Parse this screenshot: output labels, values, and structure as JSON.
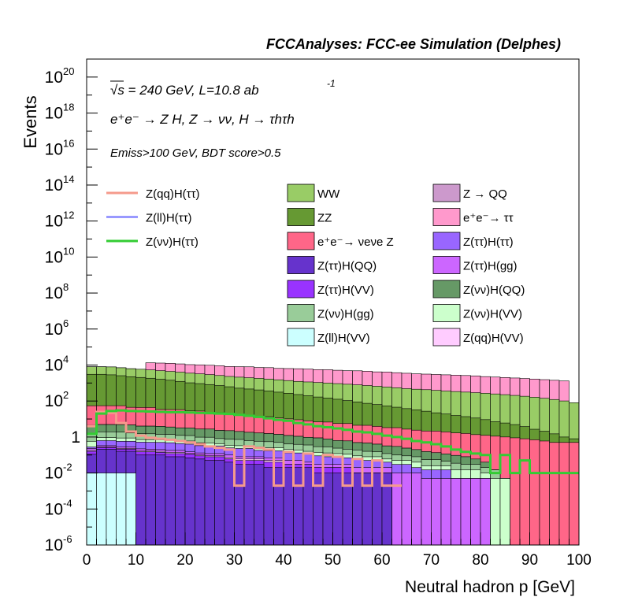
{
  "chart_data": {
    "type": "histogram-stacked-log",
    "title": "FCCAnalyses: FCC-ee Simulation (Delphes)",
    "annotations": {
      "energy_line": "√s = 240 GeV, L=10.8 ab",
      "energy_sup": "-1",
      "process_line": "e⁺e⁻ → Z H, Z → νν, H → τhτh",
      "cut_line": "Emiss>100 GeV, BDT score>0.5"
    },
    "xlabel": "Neutral hadron p [GeV]",
    "ylabel": "Events",
    "xlim": [
      0,
      100
    ],
    "ylim": [
      1e-06,
      1e+21
    ],
    "yscale": "log",
    "x_ticks": [
      "0",
      "10",
      "20",
      "30",
      "40",
      "50",
      "60",
      "70",
      "80",
      "90",
      "100"
    ],
    "y_ticks": [
      {
        "base": "10",
        "exp": "20",
        "value": 1e+20
      },
      {
        "base": "10",
        "exp": "18",
        "value": 1e+18
      },
      {
        "base": "10",
        "exp": "16",
        "value": 1e+16
      },
      {
        "base": "10",
        "exp": "14",
        "value": 100000000000000.0
      },
      {
        "base": "10",
        "exp": "12",
        "value": 1000000000000.0
      },
      {
        "base": "10",
        "exp": "10",
        "value": 10000000000.0
      },
      {
        "base": "10",
        "exp": "8",
        "value": 100000000.0
      },
      {
        "base": "10",
        "exp": "6",
        "value": 1000000.0
      },
      {
        "base": "10",
        "exp": "4",
        "value": 10000.0
      },
      {
        "base": "10",
        "exp": "2",
        "value": 100.0
      },
      {
        "base": "1",
        "exp": "",
        "value": 1
      },
      {
        "base": "10",
        "exp": "-2",
        "value": 0.01
      },
      {
        "base": "10",
        "exp": "-4",
        "value": 0.0001
      },
      {
        "base": "10",
        "exp": "-6",
        "value": 1e-06
      }
    ],
    "bin_width": 2,
    "legend_placement": "upper area, three columns",
    "signal_lines": [
      {
        "name": "Z(qq)H(ττ)",
        "color": "#f59a8c",
        "values": [
          4,
          25,
          22,
          6,
          2,
          1.2,
          0.9,
          0.8,
          0.7,
          0.6,
          0.5,
          0.4,
          0.3,
          0.25,
          0.2,
          0.002,
          0.3,
          0.25,
          0.2,
          0.002,
          0.15,
          0.002,
          0.12,
          0.002,
          0.1,
          0.08,
          0.002,
          0.06,
          0.002,
          0.05,
          0.002,
          0.002
        ]
      },
      {
        "name": "Z(ll)H(ττ)",
        "color": "#9999ff",
        "values": []
      },
      {
        "name": "Z(νν)H(ττ)",
        "color": "#33cc33",
        "values": [
          1.5,
          20,
          28,
          30,
          28,
          27,
          26,
          25,
          24,
          24,
          23,
          22,
          21,
          20,
          19,
          17,
          15,
          13,
          11,
          9,
          8,
          6,
          5,
          4,
          3.5,
          3,
          2.5,
          2,
          1.8,
          1.5,
          1.2,
          1,
          0.8,
          0.6,
          0.5,
          0.4,
          0.3,
          0.2,
          0.15,
          0.12,
          0.1,
          0.01,
          0.1,
          0.01,
          0.05,
          0.01,
          0.01,
          0.01,
          0.01,
          0.01
        ]
      }
    ],
    "stacked_series": [
      {
        "name": "Z(ll)H(VV)",
        "color": "#ccffff",
        "values": [
          0.01,
          0.01,
          0.01,
          0.01,
          0.01,
          0,
          0,
          0,
          0,
          0,
          0,
          0,
          0,
          0,
          0,
          0,
          0,
          0,
          0,
          0,
          0,
          0,
          0,
          0,
          0,
          0,
          0,
          0,
          0,
          0,
          0,
          0,
          0,
          0,
          0,
          0,
          0,
          0,
          0,
          0,
          0,
          0,
          0,
          0,
          0,
          0,
          0,
          0,
          0,
          0
        ]
      },
      {
        "name": "Z(ττ)H(QQ)",
        "color": "#6633cc",
        "values": [
          0.1,
          0.2,
          0.2,
          0.15,
          0.15,
          0.1,
          0.1,
          0.1,
          0.08,
          0.08,
          0.07,
          0.06,
          0.05,
          0.05,
          0.04,
          0.03,
          0.03,
          0.03,
          0.02,
          0.02,
          0.02,
          0.02,
          0.02,
          0.01,
          0.01,
          0.01,
          0.01,
          0.01,
          0.01,
          0.01,
          0.01,
          0,
          0,
          0,
          0,
          0,
          0,
          0,
          0,
          0,
          0,
          0,
          0,
          0,
          0,
          0,
          0,
          0,
          0,
          0
        ]
      },
      {
        "name": "Z(ττ)H(VV)",
        "color": "#9933ff",
        "values": [
          0.05,
          0.05,
          0.05,
          0.05,
          0.05,
          0.05,
          0.05,
          0.04,
          0.04,
          0.04,
          0.04,
          0.03,
          0.03,
          0.03,
          0.02,
          0.02,
          0.02,
          0.02,
          0.02,
          0.02,
          0.01,
          0.01,
          0.01,
          0.01,
          0.01,
          0.01,
          0.01,
          0,
          0,
          0,
          0,
          0,
          0,
          0,
          0,
          0,
          0,
          0,
          0,
          0,
          0,
          0,
          0,
          0,
          0,
          0,
          0,
          0,
          0,
          0
        ]
      },
      {
        "name": "Z(qq)H(VV)",
        "color": "#ffccff",
        "values": [
          0.02,
          0.02,
          0.02,
          0.02,
          0.02,
          0.02,
          0.02,
          0.02,
          0.02,
          0.02,
          0.01,
          0.01,
          0.01,
          0.01,
          0.01,
          0.01,
          0.01,
          0.01,
          0.01,
          0.01,
          0,
          0,
          0,
          0,
          0,
          0,
          0,
          0,
          0,
          0,
          0,
          0,
          0,
          0,
          0,
          0,
          0,
          0,
          0,
          0,
          0,
          0,
          0,
          0,
          0,
          0,
          0,
          0,
          0,
          0
        ]
      },
      {
        "name": "Z(ττ)H(gg)",
        "color": "#cc66ff",
        "values": [
          0.05,
          0.05,
          0.05,
          0.05,
          0.05,
          0.05,
          0.04,
          0.04,
          0.04,
          0.04,
          0.03,
          0.03,
          0.03,
          0.03,
          0.03,
          0.02,
          0.02,
          0.02,
          0.02,
          0.02,
          0.02,
          0.02,
          0.01,
          0.01,
          0.01,
          0.01,
          0.01,
          0.01,
          0.01,
          0.01,
          0.01,
          0.01,
          0.01,
          0.01,
          0.005,
          0.005,
          0.005,
          0.005,
          0.005,
          0.005,
          0.005,
          0,
          0,
          0,
          0,
          0,
          0,
          0,
          0,
          0
        ]
      },
      {
        "name": "Z(ττ)H(ττ)",
        "color": "#9966ff",
        "values": [
          0.05,
          0.3,
          0.3,
          0.3,
          0.3,
          0.3,
          0.3,
          0.3,
          0.3,
          0.25,
          0.25,
          0.2,
          0.2,
          0.2,
          0.15,
          0.15,
          0.15,
          0.1,
          0.1,
          0.1,
          0.08,
          0.08,
          0.07,
          0.06,
          0.05,
          0.05,
          0.04,
          0.04,
          0.03,
          0.03,
          0.02,
          0.02,
          0.02,
          0.01,
          0.01,
          0.01,
          0.01,
          0,
          0,
          0,
          0,
          0,
          0,
          0,
          0,
          0,
          0,
          0,
          0,
          0
        ]
      },
      {
        "name": "Z(νν)H(VV)",
        "color": "#ccffcc",
        "values": [
          0.3,
          0.3,
          0.3,
          0.3,
          0.3,
          0.2,
          0.2,
          0.2,
          0.2,
          0.2,
          0.2,
          0.15,
          0.15,
          0.1,
          0.1,
          0.1,
          0.1,
          0.1,
          0.08,
          0.08,
          0.08,
          0.06,
          0.05,
          0.05,
          0.05,
          0.04,
          0.04,
          0.03,
          0.03,
          0.03,
          0.02,
          0.02,
          0.02,
          0.02,
          0.01,
          0.01,
          0.01,
          0.01,
          0.01,
          0.01,
          0.005,
          0.005,
          0.005,
          0,
          0,
          0,
          0,
          0,
          0,
          0
        ]
      },
      {
        "name": "Z(νν)H(gg)",
        "color": "#99cc99",
        "values": [
          1,
          1,
          1,
          1,
          0.8,
          0.8,
          0.8,
          0.7,
          0.7,
          0.6,
          0.6,
          0.5,
          0.5,
          0.4,
          0.4,
          0.4,
          0.3,
          0.3,
          0.3,
          0.25,
          0.2,
          0.2,
          0.2,
          0.15,
          0.15,
          0.12,
          0.1,
          0.1,
          0.08,
          0.07,
          0.06,
          0.05,
          0.04,
          0.04,
          0.03,
          0.03,
          0.02,
          0.02,
          0.015,
          0.015,
          0.01,
          0.01,
          0,
          0,
          0,
          0,
          0,
          0,
          0,
          0
        ]
      },
      {
        "name": "Z(νν)H(QQ)",
        "color": "#669966",
        "values": [
          3,
          3,
          3,
          3,
          3,
          2.5,
          2.5,
          2.5,
          2.2,
          2,
          2,
          1.8,
          1.8,
          1.5,
          1.5,
          1.3,
          1.2,
          1.1,
          1,
          0.9,
          0.8,
          0.7,
          0.6,
          0.6,
          0.5,
          0.4,
          0.4,
          0.3,
          0.3,
          0.25,
          0.2,
          0.2,
          0.15,
          0.12,
          0.1,
          0.08,
          0.07,
          0.06,
          0.05,
          0.03,
          0.02,
          0.0,
          0.0,
          0.0,
          0,
          0,
          0,
          0,
          0,
          0
        ]
      },
      {
        "name": "Z → QQ",
        "color": "#cc99cc",
        "values": [
          0,
          0,
          0,
          0,
          0,
          0,
          0,
          0,
          0,
          0,
          0,
          0,
          0,
          0,
          0,
          0,
          0,
          0,
          0,
          0,
          0,
          0,
          0,
          0,
          0,
          0,
          0,
          0,
          0,
          0,
          0,
          0,
          0,
          0,
          0,
          0,
          0,
          0,
          0,
          0,
          0,
          0,
          0,
          0,
          0,
          0,
          0,
          0,
          0,
          0
        ]
      },
      {
        "name": "e⁺e⁻→ νeνe Z",
        "color": "#ff6688",
        "values": [
          50,
          50,
          50,
          50,
          40,
          40,
          40,
          30,
          30,
          30,
          25,
          25,
          20,
          20,
          18,
          16,
          14,
          12,
          12,
          10,
          9,
          8,
          7,
          6,
          6,
          5,
          5,
          4,
          4,
          3.5,
          3,
          3,
          2.5,
          2.2,
          2,
          2,
          1.8,
          1.6,
          1.5,
          1.3,
          1.2,
          1.1,
          1,
          0.9,
          0.8,
          0.7,
          0.6,
          0.5,
          0.5,
          0.5
        ]
      },
      {
        "name": "ZZ",
        "color": "#669933",
        "values": [
          3000,
          3000,
          2800,
          2500,
          2200,
          2000,
          1800,
          1600,
          1400,
          1200,
          1000,
          900,
          800,
          700,
          600,
          500,
          450,
          400,
          350,
          300,
          260,
          220,
          190,
          160,
          140,
          120,
          100,
          85,
          70,
          60,
          50,
          42,
          35,
          30,
          25,
          20,
          17,
          14,
          12,
          10,
          8,
          6,
          5,
          4,
          3,
          2,
          1.5,
          1,
          0.5,
          0.3
        ]
      },
      {
        "name": "WW",
        "color": "#99cc66",
        "values": [
          5000,
          5000,
          5000,
          4500,
          4000,
          3800,
          3500,
          3200,
          3000,
          2800,
          2500,
          2300,
          2100,
          1900,
          1700,
          1600,
          1500,
          1400,
          1300,
          1200,
          1100,
          1000,
          950,
          900,
          850,
          800,
          750,
          700,
          650,
          600,
          550,
          500,
          450,
          420,
          400,
          370,
          340,
          320,
          300,
          280,
          260,
          240,
          220,
          200,
          180,
          160,
          140,
          120,
          100,
          80
        ]
      },
      {
        "name": "e⁺e⁻→ ττ",
        "color": "#ff99cc",
        "values": [
          0,
          0,
          0,
          0,
          0,
          0,
          8000,
          8000,
          8000,
          7500,
          7000,
          7000,
          6800,
          6500,
          6000,
          6000,
          6000,
          5500,
          5500,
          5000,
          5000,
          5000,
          4800,
          4500,
          4500,
          4200,
          4000,
          4000,
          3800,
          3500,
          3500,
          3200,
          3000,
          2800,
          2700,
          2600,
          2500,
          2400,
          2300,
          2200,
          2000,
          1900,
          1800,
          1700,
          1600,
          1500,
          1400,
          1300,
          1200,
          0
        ]
      }
    ],
    "legend_columns": [
      [
        "Z(qq)H(ττ)",
        "Z(ll)H(ττ)",
        "Z(νν)H(ττ)"
      ],
      [
        "WW",
        "ZZ",
        "e⁺e⁻→ νeνe Z",
        "Z(ττ)H(QQ)",
        "Z(ττ)H(VV)",
        "Z(νν)H(gg)",
        "Z(ll)H(VV)"
      ],
      [
        "Z → QQ",
        "e⁺e⁻→ ττ",
        "Z(ττ)H(ττ)",
        "Z(ττ)H(gg)",
        "Z(νν)H(QQ)",
        "Z(νν)H(VV)",
        "Z(qq)H(VV)"
      ]
    ]
  }
}
